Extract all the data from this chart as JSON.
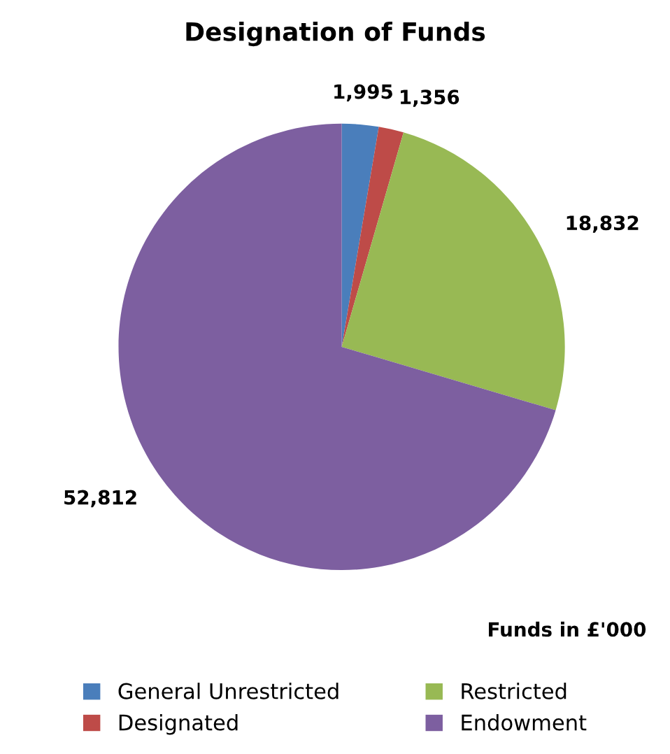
{
  "chart_data": {
    "type": "pie",
    "title": "Designation of Funds",
    "categories": [
      "General Unrestricted",
      "Designated",
      "Restricted",
      "Endowment"
    ],
    "values": [
      1995,
      1356,
      18832,
      52812
    ],
    "colors": [
      "#4a7ebb",
      "#be4b48",
      "#98b954",
      "#7d5fa0"
    ],
    "value_labels": [
      "1,995",
      "1,356",
      "18,832",
      "52,812"
    ],
    "annotations": [
      "Funds in £'000"
    ],
    "legend": "bottom"
  }
}
